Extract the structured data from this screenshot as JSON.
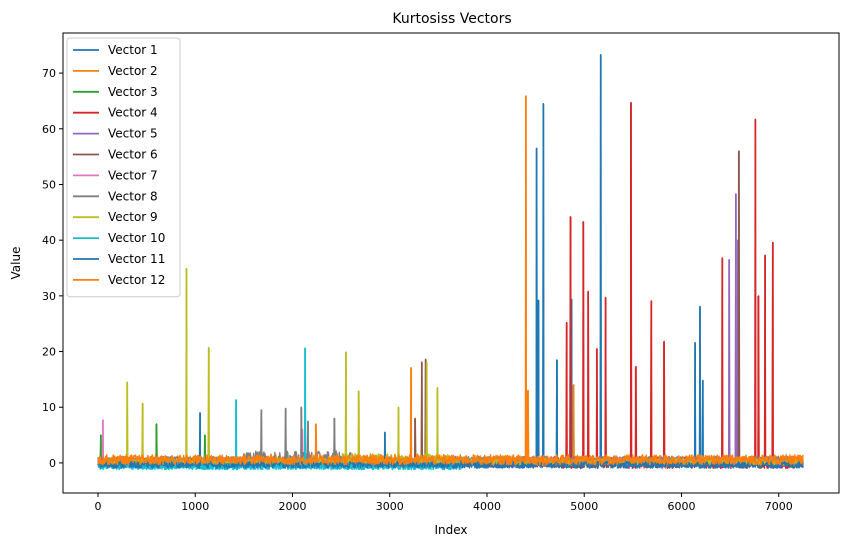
{
  "chart_data": {
    "type": "line",
    "title": "Kurtosiss Vectors",
    "xlabel": "Index",
    "ylabel": "Value",
    "xlim": [
      -360,
      7620
    ],
    "ylim": [
      -5.4,
      77.2
    ],
    "x_ticks": [
      0,
      1000,
      2000,
      3000,
      4000,
      5000,
      6000,
      7000
    ],
    "y_ticks": [
      0,
      10,
      20,
      30,
      40,
      50,
      60,
      70
    ],
    "grid": false,
    "legend_position": "upper-left",
    "series": [
      {
        "name": "Vector 1",
        "color": "#1f77b4",
        "spikes": [
          [
            4510,
            56.5
          ],
          [
            4530,
            29.2
          ],
          [
            4580,
            64.5
          ],
          [
            4720,
            18.5
          ],
          [
            4870,
            29.4
          ],
          [
            5170,
            73.3
          ],
          [
            6140,
            21.6
          ],
          [
            6190,
            28.1
          ],
          [
            6220,
            14.8
          ]
        ]
      },
      {
        "name": "Vector 2",
        "color": "#ff7f0e",
        "spikes": [
          [
            4400,
            65.9
          ],
          [
            4420,
            13.0
          ],
          [
            4890,
            14.0
          ]
        ]
      },
      {
        "name": "Vector 3",
        "color": "#2ca02c",
        "spikes": [
          [
            30,
            5.0
          ],
          [
            600,
            7.0
          ],
          [
            1100,
            5.0
          ]
        ]
      },
      {
        "name": "Vector 4",
        "color": "#d62728",
        "spikes": [
          [
            4820,
            25.2
          ],
          [
            4860,
            44.2
          ],
          [
            4990,
            43.3
          ],
          [
            5040,
            30.8
          ],
          [
            5130,
            20.5
          ],
          [
            5220,
            29.7
          ],
          [
            5480,
            64.7
          ],
          [
            5530,
            17.3
          ],
          [
            5690,
            29.1
          ],
          [
            5820,
            21.8
          ],
          [
            6420,
            36.8
          ],
          [
            6760,
            61.7
          ],
          [
            6790,
            30.0
          ],
          [
            6860,
            37.3
          ],
          [
            6940,
            39.6
          ]
        ]
      },
      {
        "name": "Vector 5",
        "color": "#9467bd",
        "spikes": [
          [
            6490,
            36.5
          ],
          [
            6560,
            48.3
          ],
          [
            6580,
            40.0
          ]
        ]
      },
      {
        "name": "Vector 6",
        "color": "#8c564b",
        "spikes": [
          [
            3330,
            18.1
          ],
          [
            3370,
            18.6
          ],
          [
            3260,
            8.0
          ],
          [
            6590,
            56.0
          ]
        ]
      },
      {
        "name": "Vector 7",
        "color": "#e377c2",
        "spikes": [
          [
            50,
            7.7
          ],
          [
            2100,
            6.0
          ]
        ]
      },
      {
        "name": "Vector 8",
        "color": "#7f7f7f",
        "spikes": [
          [
            1680,
            9.5
          ],
          [
            1930,
            9.8
          ],
          [
            2090,
            10.0
          ],
          [
            2160,
            7.5
          ],
          [
            2430,
            8.0
          ]
        ]
      },
      {
        "name": "Vector 9",
        "color": "#bcbd22",
        "spikes": [
          [
            300,
            14.5
          ],
          [
            460,
            10.7
          ],
          [
            910,
            34.9
          ],
          [
            1140,
            20.7
          ],
          [
            2550,
            19.9
          ],
          [
            2680,
            12.9
          ],
          [
            3090,
            10.0
          ],
          [
            3380,
            18.0
          ],
          [
            3490,
            13.5
          ]
        ]
      },
      {
        "name": "Vector 10",
        "color": "#17becf",
        "spikes": [
          [
            1420,
            11.3
          ],
          [
            2130,
            20.6
          ]
        ]
      },
      {
        "name": "Vector 11",
        "color": "#1f77b4",
        "spikes": [
          [
            1050,
            9.0
          ],
          [
            2950,
            5.5
          ]
        ]
      },
      {
        "name": "Vector 12",
        "color": "#ff7f0e",
        "spikes": [
          [
            3220,
            17.1
          ],
          [
            2240,
            7.0
          ]
        ]
      }
    ]
  }
}
